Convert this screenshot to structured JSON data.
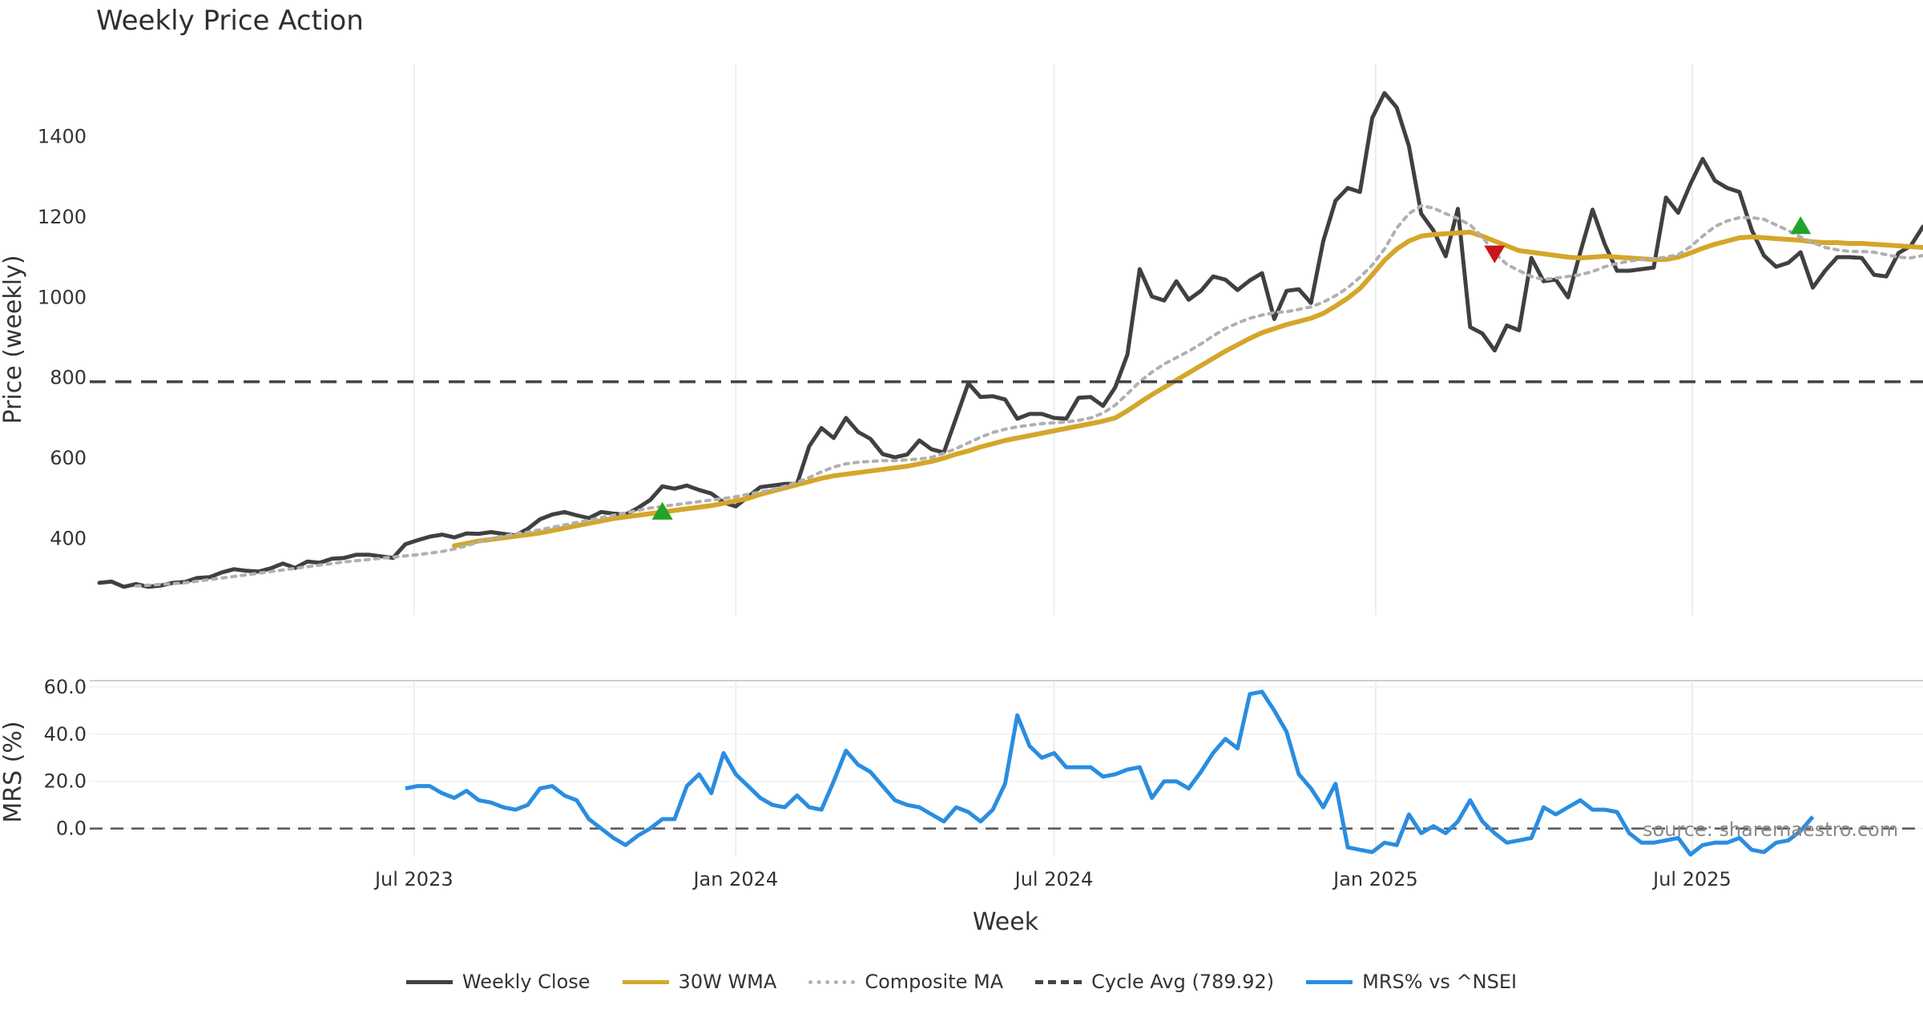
{
  "page": {
    "title": "Weekly Price Action",
    "source": "source: sharemaestro.com"
  },
  "chart_data": [
    {
      "type": "line",
      "title": "Weekly Price Action",
      "ylabel": "Price (weekly)",
      "xlabel": "Week",
      "ylim": [
        210,
        1580
      ],
      "yticks": [
        400,
        600,
        800,
        1000,
        1200,
        1400
      ],
      "x_start": "2023-01-02",
      "grid": true,
      "series": [
        {
          "name": "Weekly Close",
          "color": "#404040",
          "style": "solid",
          "values": [
            290,
            293,
            280,
            287,
            280,
            283,
            290,
            292,
            302,
            304,
            316,
            324,
            320,
            318,
            326,
            338,
            327,
            343,
            340,
            350,
            352,
            360,
            360,
            356,
            352,
            386,
            396,
            405,
            410,
            403,
            413,
            412,
            416,
            412,
            408,
            424,
            448,
            460,
            466,
            458,
            451,
            466,
            462,
            460,
            476,
            496,
            530,
            524,
            532,
            521,
            512,
            490,
            480,
            504,
            528,
            532,
            536,
            536,
            630,
            675,
            650,
            700,
            665,
            648,
            610,
            602,
            609,
            644,
            622,
            614,
            700,
            786,
            752,
            754,
            746,
            698,
            710,
            710,
            700,
            698,
            750,
            752,
            730,
            776,
            858,
            1070,
            1002,
            992,
            1040,
            994,
            1016,
            1052,
            1044,
            1018,
            1042,
            1060,
            946,
            1016,
            1020,
            986,
            1140,
            1240,
            1272,
            1262,
            1446,
            1508,
            1472,
            1376,
            1208,
            1166,
            1102,
            1220,
            926,
            910,
            868,
            930,
            918,
            1098,
            1040,
            1044,
            1000,
            1112,
            1218,
            1132,
            1066,
            1066,
            1070,
            1074,
            1248,
            1210,
            1282,
            1344,
            1290,
            1272,
            1262,
            1168,
            1104,
            1076,
            1086,
            1112,
            1024,
            1066,
            1100,
            1100,
            1098,
            1056,
            1052,
            1110,
            1128,
            1176
          ]
        },
        {
          "name": "30W WMA",
          "color": "#d4a62a",
          "style": "solid",
          "start_index": 29,
          "values": [
            382,
            388,
            394,
            398,
            402,
            406,
            410,
            414,
            420,
            426,
            432,
            438,
            444,
            450,
            454,
            458,
            462,
            466,
            470,
            474,
            478,
            482,
            488,
            494,
            500,
            510,
            518,
            526,
            534,
            542,
            550,
            556,
            560,
            564,
            568,
            572,
            576,
            580,
            586,
            592,
            600,
            610,
            618,
            628,
            636,
            644,
            650,
            656,
            662,
            668,
            674,
            680,
            686,
            692,
            700,
            718,
            738,
            758,
            776,
            794,
            812,
            830,
            848,
            866,
            882,
            898,
            912,
            922,
            932,
            940,
            948,
            960,
            978,
            998,
            1022,
            1056,
            1092,
            1120,
            1140,
            1152,
            1156,
            1158,
            1160,
            1162,
            1152,
            1140,
            1128,
            1116,
            1112,
            1108,
            1104,
            1100,
            1098,
            1100,
            1102,
            1100,
            1098,
            1096,
            1094,
            1094,
            1100,
            1110,
            1122,
            1132,
            1140,
            1148,
            1150,
            1148,
            1146,
            1144,
            1142,
            1138,
            1136,
            1136,
            1134,
            1134,
            1132,
            1130,
            1128,
            1126,
            1124,
            1124,
            1124
          ]
        },
        {
          "name": "Composite MA",
          "color": "#b0b0b0",
          "style": "dotted",
          "start_index": 3,
          "values": [
            282,
            284,
            286,
            288,
            290,
            294,
            298,
            302,
            306,
            310,
            314,
            318,
            322,
            326,
            330,
            334,
            338,
            342,
            345,
            348,
            351,
            354,
            357,
            360,
            364,
            368,
            374,
            382,
            392,
            400,
            406,
            412,
            416,
            422,
            428,
            434,
            440,
            446,
            452,
            458,
            464,
            470,
            476,
            480,
            484,
            488,
            492,
            496,
            500,
            504,
            510,
            516,
            522,
            530,
            540,
            552,
            566,
            578,
            586,
            590,
            592,
            594,
            594,
            596,
            598,
            602,
            612,
            624,
            638,
            652,
            664,
            672,
            678,
            682,
            686,
            688,
            690,
            694,
            700,
            712,
            732,
            760,
            790,
            814,
            834,
            850,
            866,
            884,
            904,
            922,
            936,
            948,
            956,
            962,
            964,
            970,
            976,
            988,
            1004,
            1024,
            1050,
            1080,
            1120,
            1172,
            1208,
            1228,
            1222,
            1208,
            1196,
            1180,
            1150,
            1110,
            1082,
            1066,
            1052,
            1044,
            1048,
            1052,
            1056,
            1064,
            1076,
            1084,
            1090,
            1094,
            1096,
            1100,
            1106,
            1126,
            1152,
            1176,
            1190,
            1198,
            1198,
            1194,
            1180,
            1166,
            1150,
            1136,
            1124,
            1118,
            1114,
            1114,
            1112,
            1106,
            1100,
            1098,
            1104
          ]
        },
        {
          "name": "Cycle Avg (789.92)",
          "color": "#444444",
          "style": "dashed",
          "values": [
            789.92
          ]
        }
      ],
      "markers": [
        {
          "label": "buy",
          "color": "#22a32a",
          "index": 46,
          "value": 468
        },
        {
          "label": "sell",
          "color": "#c8161d",
          "index": 114,
          "value": 1108
        },
        {
          "label": "buy",
          "color": "#22a32a",
          "index": 139,
          "value": 1178
        }
      ]
    },
    {
      "type": "line",
      "ylabel": "MRS (%)",
      "xlabel": "Week",
      "ylim": [
        -12,
        62
      ],
      "yticks": [
        "0.0",
        "20.0",
        "40.0",
        "60.0"
      ],
      "x_tick_labels": [
        "Jul 2023",
        "Jan 2024",
        "Jul 2024",
        "Jan 2025",
        "Jul 2025"
      ],
      "series": [
        {
          "name": "MRS% vs ^NSEI",
          "color": "#2a8de0",
          "style": "solid",
          "start_index": 25,
          "values": [
            17,
            18,
            18,
            15,
            13,
            16,
            12,
            11,
            9,
            8,
            10,
            17,
            18,
            14,
            12,
            4,
            0,
            -4,
            -7,
            -3,
            0,
            4,
            4,
            18,
            23,
            15,
            32,
            23,
            18,
            13,
            10,
            9,
            14,
            9,
            8,
            20,
            33,
            27,
            24,
            18,
            12,
            10,
            9,
            6,
            3,
            9,
            7,
            3,
            8,
            19,
            48,
            35,
            30,
            32,
            26,
            26,
            26,
            22,
            23,
            25,
            26,
            13,
            20,
            20,
            17,
            24,
            32,
            38,
            34,
            57,
            58,
            50,
            41,
            23,
            17,
            9,
            19,
            -8,
            -9,
            -10,
            -6,
            -7,
            6,
            -2,
            1,
            -2,
            3,
            12,
            3,
            -2,
            -6,
            -5,
            -4,
            9,
            6,
            9,
            12,
            8,
            8,
            7,
            -2,
            -6,
            -6,
            -5,
            -4,
            -11,
            -7,
            -6,
            -6,
            -4,
            -9,
            -10,
            -6,
            -5,
            -1,
            5
          ]
        }
      ],
      "reference_line": {
        "value": 0,
        "style": "dashed"
      }
    }
  ],
  "legend": [
    {
      "label": "Weekly Close",
      "color": "#404040",
      "style": "solid"
    },
    {
      "label": "30W WMA",
      "color": "#d4a62a",
      "style": "solid"
    },
    {
      "label": "Composite MA",
      "color": "#b0b0b0",
      "style": "dotted"
    },
    {
      "label": "Cycle Avg (789.92)",
      "color": "#444444",
      "style": "dashed"
    },
    {
      "label": "MRS% vs ^NSEI",
      "color": "#2a8de0",
      "style": "solid"
    }
  ]
}
